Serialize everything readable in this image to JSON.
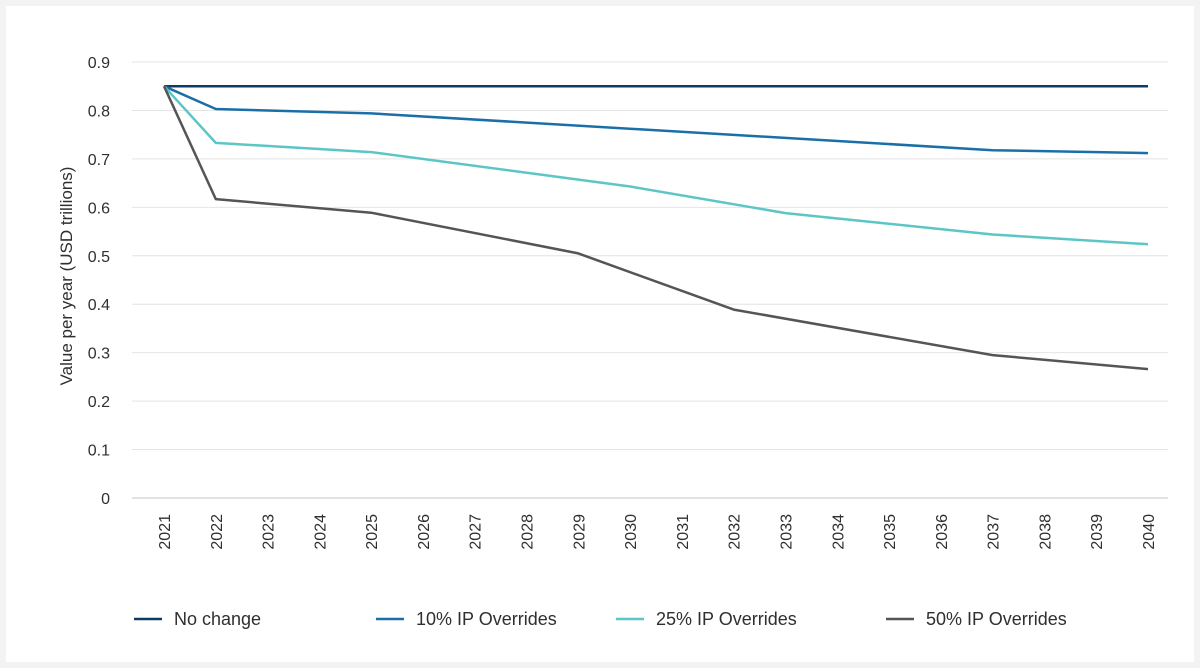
{
  "chart_data": {
    "type": "line",
    "ylabel": "Value per year (USD trillions)",
    "xlabel": "",
    "ylim": [
      0,
      0.9
    ],
    "yticks": [
      "0",
      "0.1",
      "0.2",
      "0.3",
      "0.4",
      "0.5",
      "0.6",
      "0.7",
      "0.8",
      "0.9"
    ],
    "xlim": [
      2021,
      2040
    ],
    "xticks": [
      "2021",
      "2022",
      "2023",
      "2024",
      "2025",
      "2026",
      "2027",
      "2028",
      "2029",
      "2030",
      "2031",
      "2032",
      "2033",
      "2034",
      "2035",
      "2036",
      "2037",
      "2038",
      "2039",
      "2040"
    ],
    "grid": "horizontal",
    "legend_position": "bottom",
    "series": [
      {
        "name": "No change",
        "color": "#0d3b66",
        "points": [
          [
            2021,
            0.85
          ],
          [
            2040,
            0.85
          ]
        ]
      },
      {
        "name": "10% IP Overrides",
        "color": "#1a6fa8",
        "points": [
          [
            2021,
            0.85
          ],
          [
            2022,
            0.803
          ],
          [
            2025,
            0.794
          ],
          [
            2037,
            0.718
          ],
          [
            2040,
            0.712
          ]
        ]
      },
      {
        "name": "25% IP Overrides",
        "color": "#5cc6c7",
        "points": [
          [
            2021,
            0.85
          ],
          [
            2022,
            0.733
          ],
          [
            2025,
            0.714
          ],
          [
            2030,
            0.643
          ],
          [
            2033,
            0.588
          ],
          [
            2037,
            0.544
          ],
          [
            2040,
            0.524
          ]
        ]
      },
      {
        "name": "50% IP Overrides",
        "color": "#555555",
        "points": [
          [
            2021,
            0.85
          ],
          [
            2022,
            0.617
          ],
          [
            2025,
            0.589
          ],
          [
            2029,
            0.505
          ],
          [
            2032,
            0.389
          ],
          [
            2037,
            0.295
          ],
          [
            2040,
            0.266
          ]
        ]
      }
    ]
  }
}
